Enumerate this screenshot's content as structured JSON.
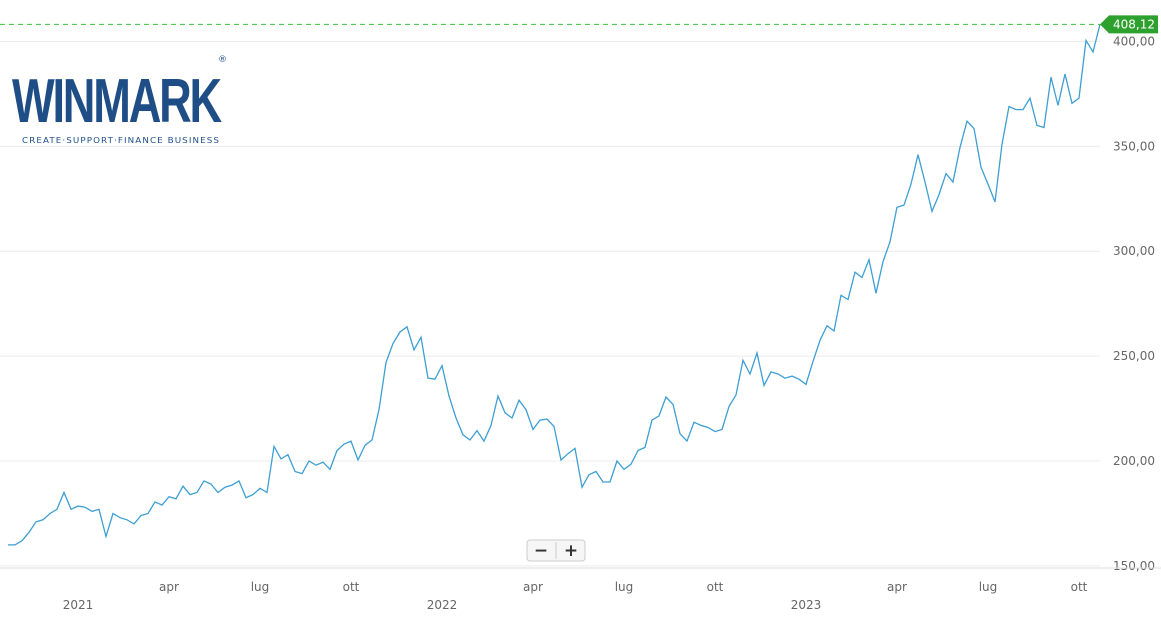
{
  "logo": {
    "name": "WINMARK",
    "mark": "®",
    "tagline": "CREATE·SUPPORT·FINANCE BUSINESS"
  },
  "zoom_buttons": [
    "−",
    "+"
  ],
  "chart_data": {
    "type": "line",
    "categories": [
      null,
      null,
      null,
      null,
      null,
      null,
      null,
      null,
      null,
      null,
      "2021",
      null,
      null,
      null,
      null,
      null,
      null,
      null,
      null,
      null,
      null,
      null,
      null,
      "apr",
      null,
      null,
      null,
      null,
      null,
      null,
      null,
      null,
      null,
      null,
      null,
      null,
      "lug",
      null,
      null,
      null,
      null,
      null,
      null,
      null,
      null,
      null,
      null,
      null,
      null,
      "ott",
      null,
      null,
      null,
      null,
      null,
      null,
      null,
      null,
      null,
      null,
      null,
      null,
      "2022",
      null,
      null,
      null,
      null,
      null,
      null,
      null,
      null,
      null,
      null,
      null,
      null,
      "apr",
      null,
      null,
      null,
      null,
      null,
      null,
      null,
      null,
      null,
      null,
      null,
      null,
      "lug",
      null,
      null,
      null,
      null,
      null,
      null,
      null,
      null,
      null,
      null,
      null,
      null,
      "ott",
      null,
      null,
      null,
      null,
      null,
      null,
      null,
      null,
      null,
      null,
      null,
      null,
      "2023",
      null,
      null,
      null,
      null,
      null,
      null,
      null,
      null,
      null,
      null,
      null,
      null,
      "apr",
      null,
      null,
      null,
      null,
      null,
      null,
      null,
      null,
      null,
      null,
      null,
      null,
      "lug",
      null,
      null,
      null,
      null,
      null,
      null,
      null,
      null,
      null,
      null,
      null,
      null,
      "ott",
      null,
      null,
      null
    ],
    "series": [
      {
        "name": null,
        "color": "#3d9fd3",
        "values": [
          160,
          160,
          162,
          166,
          171,
          172,
          175,
          177,
          185,
          177,
          178.5,
          178,
          176,
          177,
          164,
          175,
          173,
          172,
          170,
          174,
          175,
          180.5,
          179,
          183,
          182,
          188,
          184,
          185,
          190.5,
          189,
          185,
          187.5,
          188.5,
          190.5,
          182.5,
          184,
          187,
          185,
          207,
          201,
          203,
          195,
          194,
          200,
          198,
          199.5,
          196,
          205,
          208,
          209.5,
          200.5,
          207.5,
          210,
          224.5,
          247,
          256,
          261.5,
          264,
          253,
          259,
          239.5,
          239,
          245.5,
          231,
          220.5,
          212.5,
          210,
          214.5,
          209.5,
          217,
          231,
          223,
          220.5,
          229,
          224.5,
          215,
          219.5,
          220,
          216.5,
          200.5,
          203.5,
          206,
          187.5,
          193.5,
          195,
          190,
          190,
          200,
          196,
          198.5,
          205,
          206.5,
          219.5,
          221.5,
          230.5,
          227,
          213,
          209.5,
          218.5,
          217,
          216,
          214,
          215,
          226,
          231.5,
          248,
          241.5,
          251.5,
          236,
          242.5,
          241.5,
          239.5,
          240.5,
          239,
          236.5,
          247.5,
          257.5,
          264.5,
          262,
          279,
          277,
          290,
          287.5,
          296,
          280,
          295,
          304.5,
          321,
          322,
          332,
          346,
          333,
          319,
          327,
          337,
          333,
          349.5,
          362,
          358.5,
          340,
          332,
          323.5,
          351,
          369,
          367.5,
          367.5,
          373,
          360,
          359,
          383,
          369.5,
          384.5,
          370.5,
          373,
          400.5,
          395,
          408.12
        ],
        "value_labels": [
          null,
          null,
          null,
          null,
          null,
          null,
          null,
          null,
          null,
          null,
          null,
          null,
          null,
          null,
          null,
          null,
          null,
          null,
          null,
          null,
          null,
          null,
          null,
          null,
          null,
          null,
          null,
          null,
          null,
          null,
          null,
          null,
          null,
          null,
          null,
          null,
          null,
          null,
          null,
          null,
          null,
          null,
          null,
          null,
          null,
          null,
          null,
          null,
          null,
          null,
          null,
          null,
          null,
          null,
          null,
          null,
          null,
          null,
          null,
          null,
          null,
          null,
          null,
          null,
          null,
          null,
          null,
          null,
          null,
          null,
          null,
          null,
          null,
          null,
          null,
          null,
          null,
          null,
          null,
          null,
          null,
          null,
          null,
          null,
          null,
          null,
          null,
          null,
          null,
          null,
          null,
          null,
          null,
          null,
          null,
          null,
          null,
          null,
          null,
          null,
          null,
          null,
          null,
          null,
          null,
          null,
          null,
          null,
          null,
          null,
          null,
          null,
          null,
          null,
          null,
          null,
          null,
          null,
          null,
          null,
          null,
          null,
          null,
          null,
          null,
          null,
          null,
          null,
          null,
          null,
          null,
          null,
          null,
          null,
          null,
          null,
          null,
          null,
          null,
          null,
          null,
          null,
          null,
          null,
          null,
          null,
          null,
          null,
          null,
          null,
          null,
          null,
          null,
          null,
          null,
          null,
          "408,12"
        ]
      }
    ],
    "ylim": [
      149,
      415
    ],
    "yticks": [
      {
        "value": 150,
        "label": "150,00"
      },
      {
        "value": 200,
        "label": "200,00"
      },
      {
        "value": 250,
        "label": "250,00"
      },
      {
        "value": 300,
        "label": "300,00"
      },
      {
        "value": 350,
        "label": "350,00"
      },
      {
        "value": 400,
        "label": "400,00"
      }
    ],
    "grid": true,
    "last_value_line_color": "#3fbf3f",
    "last_value_badge_color": "#2ea02e"
  }
}
